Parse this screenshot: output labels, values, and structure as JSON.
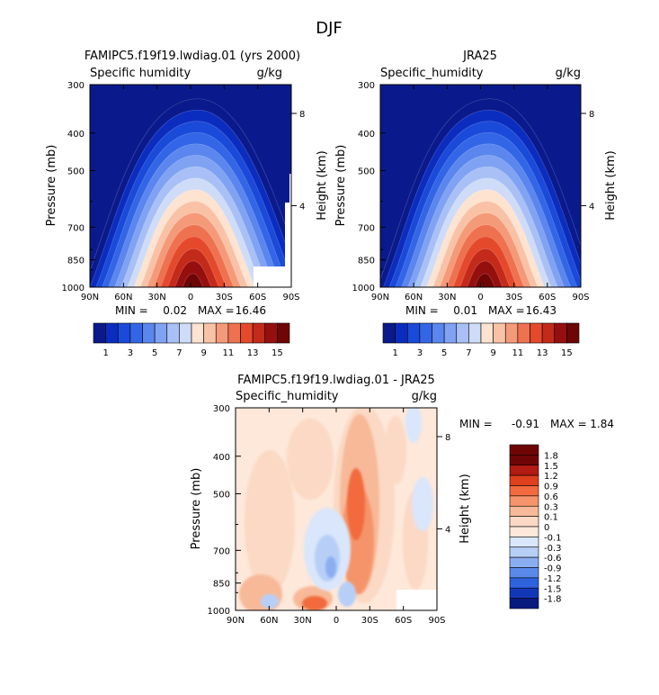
{
  "figure": {
    "title": "DJF"
  },
  "chart_data": [
    {
      "type": "heatmap",
      "title": "FAMIPC5.f19f19.lwdiag.01 (yrs 2000)",
      "variable": "Specific humidity",
      "units": "g/kg",
      "ylabel": "Pressure (mb)",
      "ylabel_right": "Height (km)",
      "x_ticks": [
        "90N",
        "60N",
        "30N",
        "0",
        "30S",
        "60S",
        "90S"
      ],
      "y_ticks": [
        "300",
        "400",
        "500",
        "700",
        "850",
        "1000"
      ],
      "y2_ticks": [
        "8",
        "4"
      ],
      "ylim": [
        1000,
        300
      ],
      "min_label": "MIN =",
      "min_value": "0.02",
      "max_label": "MAX =",
      "max_value": "16.46",
      "colorbar_labels": [
        "1",
        "3",
        "5",
        "7",
        "9",
        "11",
        "13",
        "15"
      ]
    },
    {
      "type": "heatmap",
      "title": "JRA25",
      "variable": "Specific_humidity",
      "units": "g/kg",
      "ylabel": "Pressure (mb)",
      "ylabel_right": "Height (km)",
      "x_ticks": [
        "90N",
        "60N",
        "30N",
        "0",
        "30S",
        "60S",
        "90S"
      ],
      "y_ticks": [
        "300",
        "400",
        "500",
        "700",
        "850",
        "1000"
      ],
      "y2_ticks": [
        "8",
        "4"
      ],
      "ylim": [
        1000,
        300
      ],
      "min_label": "MIN =",
      "min_value": "0.01",
      "max_label": "MAX =",
      "max_value": "16.43",
      "colorbar_labels": [
        "1",
        "3",
        "5",
        "7",
        "9",
        "11",
        "13",
        "15"
      ]
    },
    {
      "type": "heatmap",
      "title": "FAMIPC5.f19f19.lwdiag.01 - JRA25",
      "variable": "Specific_humidity",
      "units": "g/kg",
      "ylabel": "Pressure (mb)",
      "ylabel_right": "Height (km)",
      "x_ticks": [
        "90N",
        "60N",
        "30N",
        "0",
        "30S",
        "60S",
        "90S"
      ],
      "y_ticks": [
        "300",
        "400",
        "500",
        "700",
        "850",
        "1000"
      ],
      "y2_ticks": [
        "8",
        "4"
      ],
      "ylim": [
        1000,
        300
      ],
      "min_label": "MIN =",
      "min_value": "-0.91",
      "max_label": "MAX =",
      "max_value": "1.84",
      "colorbar_labels": [
        "1.8",
        "1.5",
        "1.2",
        "0.9",
        "0.6",
        "0.3",
        "0.1",
        "0",
        "-0.1",
        "-0.3",
        "-0.6",
        "-0.9",
        "-1.2",
        "-1.5",
        "-1.8"
      ]
    }
  ],
  "palette": {
    "blue_red": [
      "#0a1a8c",
      "#0b2dbf",
      "#1a4ad9",
      "#3366e6",
      "#5a86ee",
      "#7fa2f2",
      "#a8c0f5",
      "#cfdcf8",
      "#fde3d0",
      "#f9c2a6",
      "#f59a78",
      "#ee7150",
      "#e5492c",
      "#c42a1a",
      "#960f0f",
      "#6e0606"
    ],
    "diff": [
      "#6e0606",
      "#b31a14",
      "#e0401e",
      "#f26a3e",
      "#f5946b",
      "#f8b999",
      "#fbd9c4",
      "#fde8da",
      "#d9e6fb",
      "#b7cff7",
      "#8aaef0",
      "#5b89ea",
      "#2f62dd",
      "#1238b8",
      "#061a80"
    ]
  }
}
